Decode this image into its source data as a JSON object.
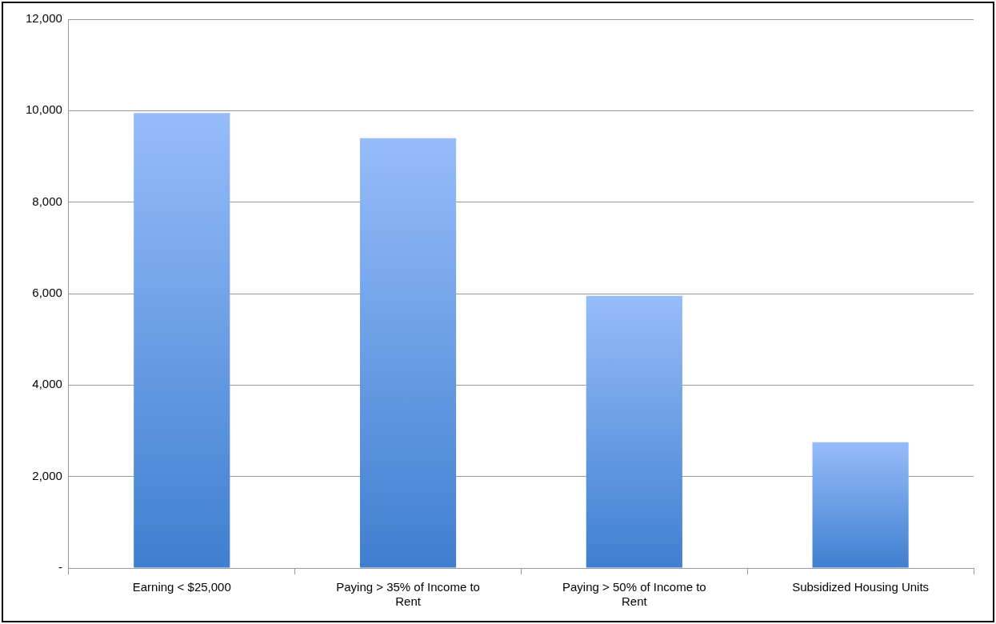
{
  "chart_data": {
    "type": "bar",
    "categories": [
      "Earning < $25,000",
      "Paying > 35% of Income to Rent",
      "Paying > 50% of Income to Rent",
      "Subsidized Housing Units"
    ],
    "values": [
      9950,
      9400,
      5950,
      2750
    ],
    "color": "#3f7fcf",
    "ylim": [
      0,
      12000
    ],
    "yticks": [
      {
        "value": 0,
        "label": "-"
      },
      {
        "value": 2000,
        "label": "2,000"
      },
      {
        "value": 4000,
        "label": "4,000"
      },
      {
        "value": 6000,
        "label": "6,000"
      },
      {
        "value": 8000,
        "label": "8,000"
      },
      {
        "value": 10000,
        "label": "10,000"
      },
      {
        "value": 12000,
        "label": "12,000"
      }
    ],
    "grid": "y"
  }
}
